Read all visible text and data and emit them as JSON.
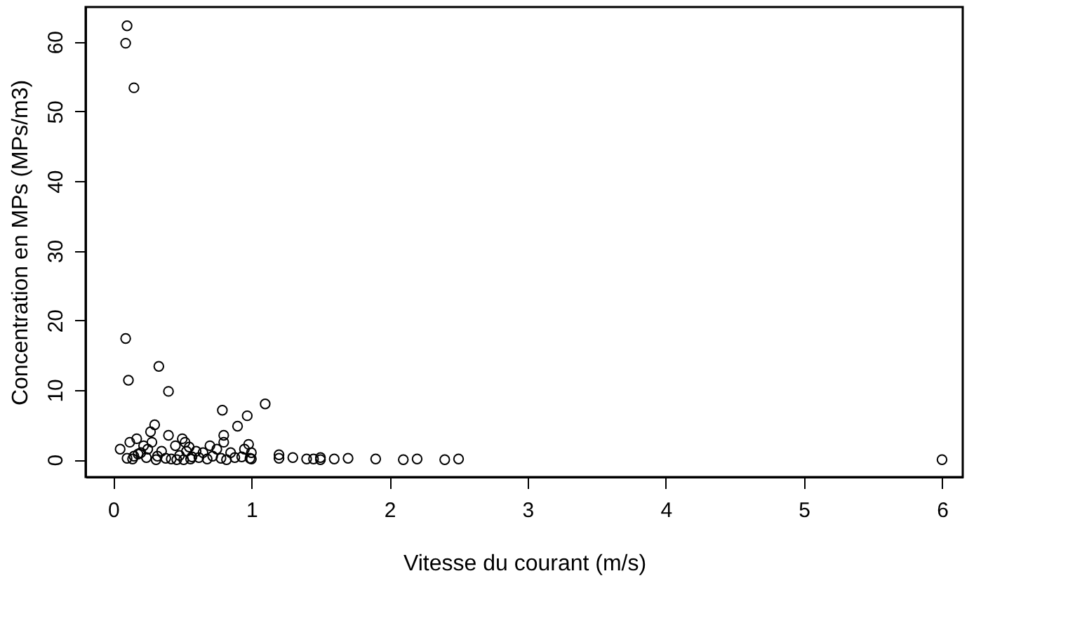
{
  "chart_data": {
    "type": "scatter",
    "xlabel": "Vitesse du courant (m/s)",
    "ylabel": "Concentration en MPs (MPs/m3)",
    "xlim": [
      -0.2,
      6.15
    ],
    "ylim": [
      -2.5,
      65
    ],
    "xticks": [
      0,
      1,
      2,
      3,
      4,
      5,
      6
    ],
    "yticks": [
      0,
      10,
      20,
      30,
      40,
      50,
      60
    ],
    "grid": false,
    "marker": "circle",
    "legend": false,
    "series": [
      {
        "color": "#000000",
        "x": [
          0.1,
          0.09,
          0.15,
          0.09,
          0.11,
          0.33,
          0.4,
          0.79,
          1.1,
          0.97,
          0.9,
          0.8,
          0.8,
          0.98,
          0.3,
          0.27,
          0.4,
          0.05,
          0.12,
          0.17,
          0.22,
          0.25,
          0.2,
          0.28,
          0.35,
          0.45,
          0.5,
          0.52,
          0.55,
          0.6,
          0.65,
          0.7,
          0.75,
          0.85,
          0.95,
          1.0,
          0.15,
          0.18,
          0.24,
          0.32,
          0.38,
          0.48,
          0.53,
          0.57,
          0.62,
          0.72,
          0.78,
          0.88,
          0.93,
          0.99,
          0.1,
          0.14,
          0.31,
          0.42,
          0.46,
          0.51,
          0.56,
          0.68,
          0.82,
          1.0,
          1.2,
          1.2,
          1.3,
          1.4,
          1.45,
          1.5,
          1.5,
          1.6,
          1.7,
          1.9,
          2.1,
          2.2,
          2.4,
          2.5,
          6.0
        ],
        "values": [
          62.3,
          59.8,
          53.4,
          17.4,
          11.4,
          13.4,
          9.8,
          7.1,
          8.0,
          6.3,
          4.8,
          3.5,
          2.5,
          2.2,
          5.0,
          4.0,
          3.5,
          1.5,
          2.5,
          3.0,
          2.0,
          1.5,
          1.0,
          2.5,
          1.2,
          2.0,
          3.0,
          2.5,
          1.8,
          1.2,
          1.0,
          2.0,
          1.5,
          1.0,
          1.5,
          1.0,
          0.5,
          0.8,
          0.3,
          0.5,
          0.2,
          0.6,
          1.2,
          0.4,
          0.3,
          0.5,
          0.2,
          0.3,
          0.4,
          0.2,
          0.2,
          0.1,
          0.0,
          0.1,
          0.0,
          0.0,
          0.1,
          0.1,
          0.0,
          0.1,
          0.7,
          0.2,
          0.3,
          0.1,
          0.1,
          0.3,
          0.0,
          0.1,
          0.2,
          0.1,
          0.0,
          0.1,
          0.0,
          0.1,
          0.0
        ]
      }
    ]
  }
}
